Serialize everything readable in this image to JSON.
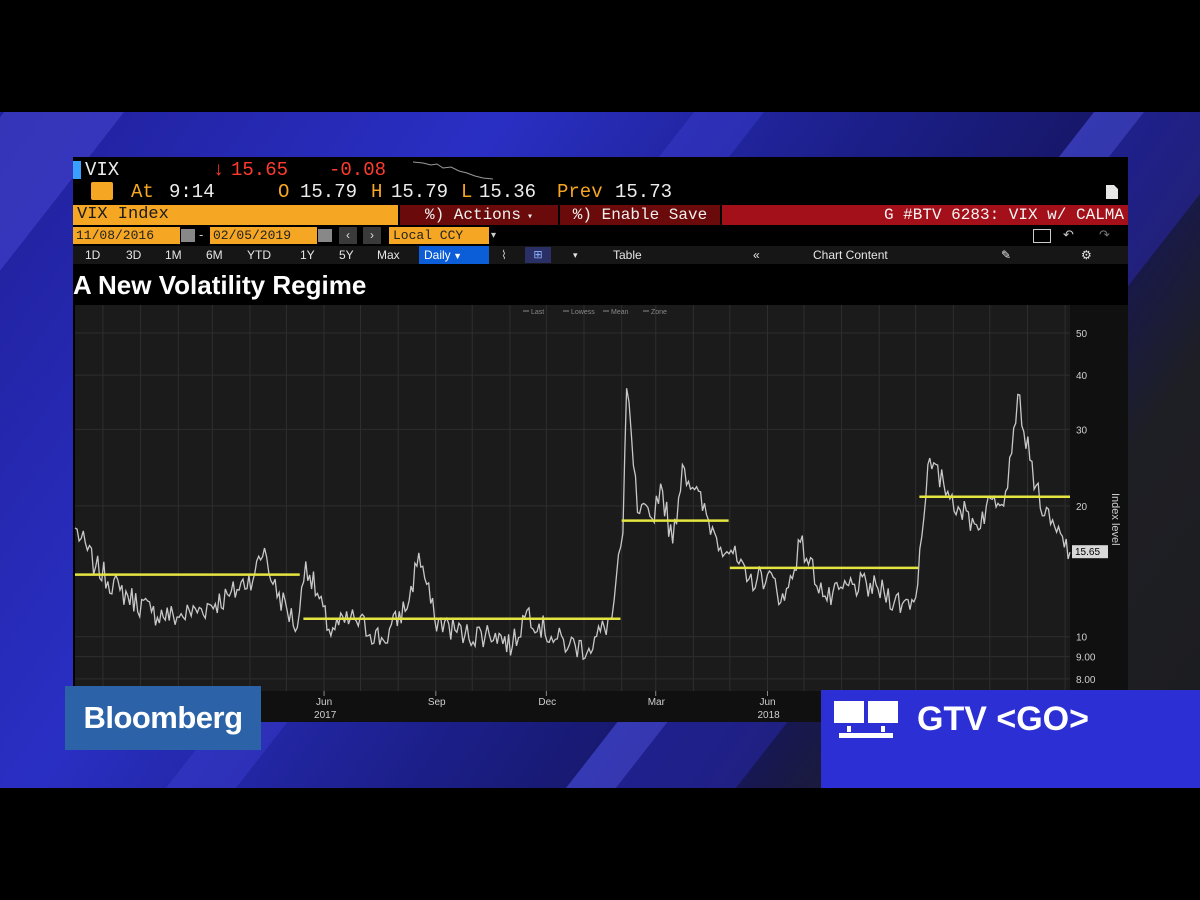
{
  "ticker": {
    "symbol": "VIX",
    "arrow": "↓",
    "last": "15.65",
    "change": "-0.08",
    "at_label": "At",
    "time": "9:14",
    "open_label": "O",
    "open": "15.79",
    "high_label": "H",
    "high": "15.79",
    "low_label": "L",
    "low": "15.36",
    "prev_label": "Prev",
    "prev": "15.73"
  },
  "toolbar": {
    "security": "VIX Index",
    "actions": "%) Actions",
    "enable_save": "%) Enable Save",
    "chart_name": "G #BTV 6283: VIX w/ CALMA"
  },
  "dates": {
    "start": "11/08/2016",
    "end": "02/05/2019",
    "currency": "Local CCY"
  },
  "periods": [
    "1D",
    "3D",
    "1M",
    "6M",
    "YTD",
    "1Y",
    "5Y",
    "Max"
  ],
  "frequency": "Daily",
  "table_label": "Table",
  "chart_content_label": "Chart Content",
  "chart_data": {
    "type": "line",
    "title": "A New Volatility Regime",
    "ylabel": "Index level",
    "yscale": "log",
    "ylim": [
      7.5,
      55
    ],
    "yticks": [
      "8.00",
      "9.00",
      "10",
      "20",
      "30",
      "40",
      "50"
    ],
    "last_value_label": "15.65",
    "legend": [
      "Last",
      "Lowess",
      "Mean",
      "Zone"
    ],
    "x_ticks": [
      {
        "label": "Jun",
        "year": "2017"
      },
      {
        "label": "Sep",
        "year": ""
      },
      {
        "label": "Dec",
        "year": ""
      },
      {
        "label": "Mar",
        "year": ""
      },
      {
        "label": "Jun",
        "year": "2018"
      }
    ],
    "series": [
      {
        "name": "VIX",
        "color": "#c8c8c8",
        "x": [
          "2016-11-08",
          "2016-11-25",
          "2016-12-15",
          "2017-01-10",
          "2017-01-31",
          "2017-02-20",
          "2017-03-15",
          "2017-04-05",
          "2017-04-13",
          "2017-04-20",
          "2017-05-10",
          "2017-05-17",
          "2017-06-05",
          "2017-06-26",
          "2017-07-20",
          "2017-08-10",
          "2017-08-18",
          "2017-08-31",
          "2017-09-25",
          "2017-10-20",
          "2017-11-03",
          "2017-11-15",
          "2017-12-05",
          "2017-12-20",
          "2018-01-05",
          "2018-01-24",
          "2018-02-02",
          "2018-02-05",
          "2018-02-09",
          "2018-02-14",
          "2018-02-26",
          "2018-03-05",
          "2018-03-15",
          "2018-03-23",
          "2018-04-02",
          "2018-04-20",
          "2018-05-02",
          "2018-05-15",
          "2018-06-01",
          "2018-06-15",
          "2018-06-28",
          "2018-07-20",
          "2018-08-10",
          "2018-08-31",
          "2018-09-20",
          "2018-10-01",
          "2018-10-11",
          "2018-10-24",
          "2018-11-05",
          "2018-11-20",
          "2018-12-03",
          "2018-12-14",
          "2018-12-24",
          "2019-01-03",
          "2019-01-15",
          "2019-01-25",
          "2019-02-05"
        ],
        "y": [
          17.8,
          14.5,
          12.8,
          11.4,
          11.1,
          11.6,
          12.4,
          14.0,
          16.0,
          13.2,
          10.5,
          14.9,
          10.4,
          11.0,
          9.8,
          12.1,
          15.6,
          11.0,
          10.1,
          10.2,
          9.5,
          11.5,
          10.0,
          9.6,
          9.4,
          11.1,
          17.3,
          37.3,
          29.1,
          19.3,
          18.7,
          22.5,
          16.4,
          24.9,
          21.8,
          16.9,
          15.8,
          13.4,
          13.9,
          12.1,
          16.5,
          12.1,
          13.2,
          12.9,
          11.9,
          12.3,
          24.9,
          22.5,
          19.9,
          18.1,
          20.7,
          21.6,
          36.1,
          25.5,
          19.0,
          17.4,
          15.65
        ]
      },
      {
        "name": "Regime mean",
        "color": "#e5e542",
        "segments": [
          {
            "from": "2016-11-08",
            "to": "2017-05-12",
            "value": 13.9
          },
          {
            "from": "2017-05-15",
            "to": "2018-01-31",
            "value": 11.0
          },
          {
            "from": "2018-02-01",
            "to": "2018-04-30",
            "value": 18.5
          },
          {
            "from": "2018-05-01",
            "to": "2018-10-03",
            "value": 14.4
          },
          {
            "from": "2018-10-04",
            "to": "2019-02-05",
            "value": 21.0
          }
        ]
      }
    ]
  },
  "branding": {
    "left": "Bloomberg",
    "right": "GTV <GO>"
  },
  "colors": {
    "orange": "#f5a623",
    "darkred": "#6a0a0a",
    "red": "#a3101a",
    "ticker_red": "#ff3b30",
    "blue_btn": "#0b5ed7"
  }
}
